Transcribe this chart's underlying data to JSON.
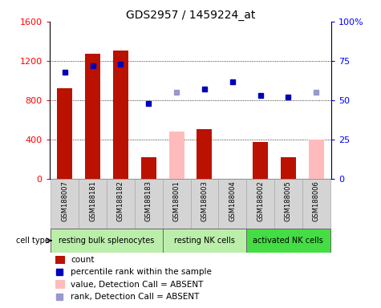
{
  "title": "GDS2957 / 1459224_at",
  "samples": [
    "GSM188007",
    "GSM188181",
    "GSM188182",
    "GSM188183",
    "GSM188001",
    "GSM188003",
    "GSM188004",
    "GSM188002",
    "GSM188005",
    "GSM188006"
  ],
  "counts": [
    920,
    1270,
    1310,
    220,
    null,
    510,
    null,
    380,
    220,
    null
  ],
  "counts_absent": [
    null,
    null,
    null,
    null,
    480,
    null,
    null,
    null,
    null,
    400
  ],
  "percentile_ranks": [
    68,
    72,
    73,
    48,
    null,
    57,
    62,
    53,
    52,
    null
  ],
  "percentile_ranks_absent": [
    null,
    null,
    null,
    null,
    55,
    null,
    null,
    null,
    null,
    55
  ],
  "bar_width": 0.55,
  "ylim_left": [
    0,
    1600
  ],
  "ylim_right": [
    0,
    100
  ],
  "yticks_left": [
    0,
    400,
    800,
    1200,
    1600
  ],
  "yticks_right": [
    0,
    25,
    50,
    75,
    100
  ],
  "yticklabels_right": [
    "0",
    "25",
    "50",
    "75",
    "100%"
  ],
  "cell_types": [
    {
      "label": "resting bulk splenocytes",
      "start": 0,
      "end": 4,
      "color": "#bbeeaa"
    },
    {
      "label": "resting NK cells",
      "start": 4,
      "end": 7,
      "color": "#bbeeaa"
    },
    {
      "label": "activated NK cells",
      "start": 7,
      "end": 10,
      "color": "#44dd44"
    }
  ],
  "bar_color_present": "#bb1100",
  "bar_color_absent": "#ffbbbb",
  "dot_color_present": "#0000bb",
  "dot_color_absent": "#9999cc",
  "label_area_color": "#d4d4d4",
  "grid_linestyle": "dotted"
}
